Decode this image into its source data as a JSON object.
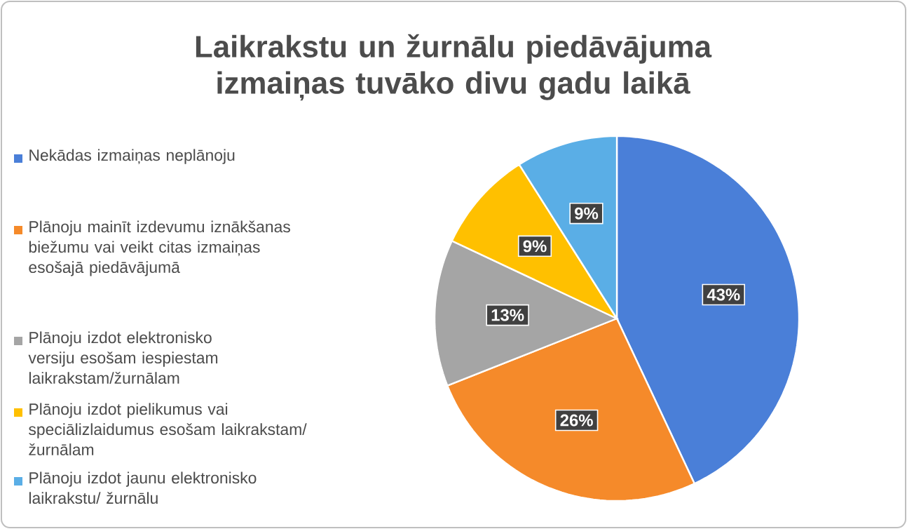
{
  "chart_data": {
    "type": "pie",
    "title": "Laikrakstu un žurnālu piedāvājuma izmaiņas tuvāko divu gadu laikā",
    "categories": [
      "Nekādas izmaiņas neplānoju",
      "Plānoju mainīt izdevumu iznākšanas biežumu vai veikt citas izmaiņas esošajā piedāvājumā",
      "Plānoju izdot elektronisko versiju esošam iespiestam laikrakstam/žurnālam",
      "Plānoju izdot pielikumus vai speciālizlaidumus esošam laikrakstam/ žurnālam",
      "Plānoju izdot jaunu elektronisko laikrakstu/ žurnālu"
    ],
    "values": [
      43,
      26,
      13,
      9,
      9
    ],
    "value_labels": [
      "43%",
      "26%",
      "13%",
      "9%",
      "9%"
    ],
    "colors": [
      "#4a7fd8",
      "#f58a2a",
      "#a5a5a5",
      "#ffc000",
      "#5aaee6"
    ],
    "legend": "left"
  }
}
